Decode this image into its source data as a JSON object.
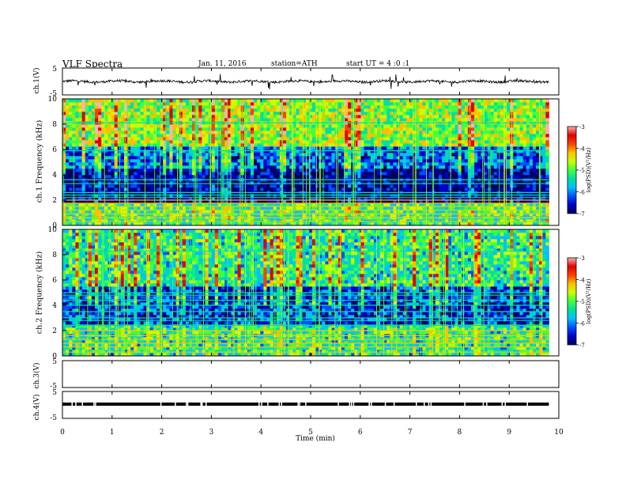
{
  "header": {
    "title": "VLF Spectra",
    "date": "Jan. 11, 2016",
    "station": "station=ATH",
    "start": "start UT = 4 :0 :1"
  },
  "colors": {
    "colormap": [
      "#000060",
      "#0000c8",
      "#0050ff",
      "#00c0ff",
      "#00e0a0",
      "#40ff40",
      "#c8ff00",
      "#ffc000",
      "#ff4000",
      "#e00000",
      "#ffb0b0"
    ],
    "trace": "#000000",
    "frame": "#000000"
  },
  "chart_data": [
    {
      "type": "line",
      "name": "ch1-waveform",
      "ylabel": "ch.1(V)",
      "ylim": [
        -5,
        5
      ],
      "yticks": [
        "5",
        "-5"
      ],
      "xlim": [
        0,
        10
      ],
      "description_values": {
        "baseline": 0,
        "typical_amplitude": 0.5,
        "spike_amplitude": 3
      }
    },
    {
      "type": "heatmap",
      "name": "ch1-spectrogram",
      "ylabel": "ch.1 Frequency (kHz)",
      "ylim": [
        0,
        10
      ],
      "yticks": [
        "10",
        "8",
        "6",
        "4",
        "2",
        "0"
      ],
      "xlim": [
        0,
        9.8
      ],
      "colorbar": {
        "label": "log(PSD)(V²/Hz)",
        "range": [
          -7,
          -3
        ],
        "ticks": [
          "-3",
          "-4",
          "-5",
          "-6",
          "-7"
        ]
      },
      "bands_khz": [
        {
          "from": 0,
          "to": 1.8,
          "level": -5.2
        },
        {
          "from": 1.8,
          "to": 4.5,
          "level": -6.7
        },
        {
          "from": 4.5,
          "to": 6.2,
          "level": -6.0
        },
        {
          "from": 6.2,
          "to": 10,
          "level": -4.8
        }
      ],
      "lines_khz": [
        0.3,
        0.6,
        0.9,
        1.2,
        1.5,
        1.75,
        2.0,
        2.2,
        2.4,
        2.6,
        3.3,
        3.6,
        5.9,
        8.1
      ]
    },
    {
      "type": "heatmap",
      "name": "ch2-spectrogram",
      "ylabel": "ch.2 Frequency (kHz)",
      "ylim": [
        0,
        10
      ],
      "yticks": [
        "10",
        "8",
        "6",
        "4",
        "2",
        "0"
      ],
      "xlim": [
        0,
        9.8
      ],
      "colorbar": {
        "label": "log(PSD)(V²/Hz)",
        "range": [
          -7,
          -3
        ],
        "ticks": [
          "-3",
          "-4",
          "-5",
          "-6",
          "-7"
        ]
      },
      "bands_khz": [
        {
          "from": 0,
          "to": 2.5,
          "level": -5.3
        },
        {
          "from": 2.5,
          "to": 5.5,
          "level": -6.3
        },
        {
          "from": 5.5,
          "to": 10,
          "level": -5.3
        }
      ],
      "lines_khz": [
        0.3,
        0.7,
        1.0,
        1.3,
        1.6,
        2.0,
        2.4,
        2.8,
        3.0,
        3.5,
        4.0,
        4.4,
        4.8,
        5.0,
        8.3
      ]
    },
    {
      "type": "line",
      "name": "ch3-waveform",
      "ylabel": "ch.3(V)",
      "ylim": [
        -5,
        5
      ],
      "yticks": [
        "5",
        "-5"
      ],
      "xlim": [
        0,
        10
      ],
      "description_values": {
        "baseline": 0
      }
    },
    {
      "type": "line",
      "name": "ch4-waveform",
      "ylabel": "ch.4(V)",
      "ylim": [
        -5,
        5
      ],
      "yticks": [
        "5",
        "-5"
      ],
      "xlim": [
        0,
        9.8
      ],
      "description_values": {
        "baseline": 0
      }
    }
  ],
  "xaxis": {
    "label": "Time (min)",
    "ticks": [
      "0",
      "1",
      "2",
      "3",
      "4",
      "5",
      "6",
      "7",
      "8",
      "9",
      "10"
    ]
  }
}
